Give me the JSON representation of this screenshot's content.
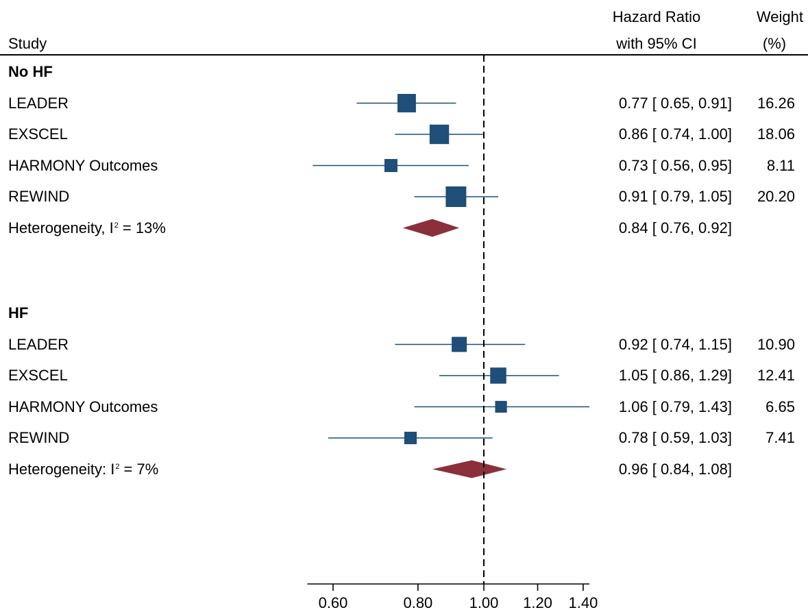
{
  "header": {
    "study": "Study",
    "hr_line1": "Hazard Ratio",
    "hr_line2": "with 95% CI",
    "weight_line1": "Weight",
    "weight_line2": "(%)"
  },
  "chart_data": {
    "type": "forest",
    "x_scale": "log",
    "xlim": [
      0.55,
      1.43
    ],
    "ticks": [
      0.6,
      0.8,
      1.0,
      1.2,
      1.4
    ],
    "tick_labels": [
      "0.60",
      "0.80",
      "1.00",
      "1.20",
      "1.40"
    ],
    "reference_line": 1.0,
    "colors": {
      "study": "#1f4e79",
      "pooled": "#8b2f3a",
      "axis": "#000000"
    },
    "groups": [
      {
        "label": "No HF",
        "studies": [
          {
            "name": "LEADER",
            "hr": 0.77,
            "lo": 0.65,
            "hi": 0.91,
            "ci_text": "0.77 [ 0.65,  0.91]",
            "weight": 16.26,
            "weight_text": "16.26"
          },
          {
            "name": "EXSCEL",
            "hr": 0.86,
            "lo": 0.74,
            "hi": 1.0,
            "ci_text": "0.86 [ 0.74,  1.00]",
            "weight": 18.06,
            "weight_text": "18.06"
          },
          {
            "name": "HARMONY Outcomes",
            "hr": 0.73,
            "lo": 0.56,
            "hi": 0.95,
            "ci_text": "0.73 [ 0.56,  0.95]",
            "weight": 8.11,
            "weight_text": "8.11"
          },
          {
            "name": "REWIND",
            "hr": 0.91,
            "lo": 0.79,
            "hi": 1.05,
            "ci_text": "0.91 [ 0.79,  1.05]",
            "weight": 20.2,
            "weight_text": "20.20"
          }
        ],
        "pooled": {
          "label": "Heterogeneity, I",
          "sup": "2",
          "label_tail": " = 13%",
          "hr": 0.84,
          "lo": 0.76,
          "hi": 0.92,
          "ci_text": "0.84 [ 0.76,  0.92]"
        }
      },
      {
        "label": "HF",
        "studies": [
          {
            "name": "LEADER",
            "hr": 0.92,
            "lo": 0.74,
            "hi": 1.15,
            "ci_text": "0.92 [ 0.74,  1.15]",
            "weight": 10.9,
            "weight_text": "10.90"
          },
          {
            "name": "EXSCEL",
            "hr": 1.05,
            "lo": 0.86,
            "hi": 1.29,
            "ci_text": "1.05 [ 0.86,  1.29]",
            "weight": 12.41,
            "weight_text": "12.41"
          },
          {
            "name": "HARMONY Outcomes",
            "hr": 1.06,
            "lo": 0.79,
            "hi": 1.43,
            "ci_text": "1.06 [ 0.79,  1.43]",
            "weight": 6.65,
            "weight_text": "6.65"
          },
          {
            "name": "REWIND",
            "hr": 0.78,
            "lo": 0.59,
            "hi": 1.03,
            "ci_text": "0.78 [ 0.59,  1.03]",
            "weight": 7.41,
            "weight_text": "7.41"
          }
        ],
        "pooled": {
          "label": "Heterogeneity: I",
          "sup": "2",
          "label_tail": " = 7%",
          "hr": 0.96,
          "lo": 0.84,
          "hi": 1.08,
          "ci_text": "0.96 [ 0.84,  1.08]"
        }
      }
    ]
  }
}
